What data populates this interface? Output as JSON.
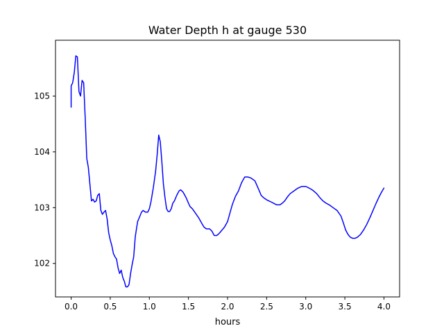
{
  "chart_data": {
    "type": "line",
    "title": "Water Depth h at gauge 530",
    "xlabel": "hours",
    "ylabel": "",
    "xlim": [
      -0.2,
      4.2
    ],
    "ylim": [
      101.4,
      106.0
    ],
    "xticks": [
      0.0,
      0.5,
      1.0,
      1.5,
      2.0,
      2.5,
      3.0,
      3.5,
      4.0
    ],
    "xtick_labels": [
      "0.0",
      "0.5",
      "1.0",
      "1.5",
      "2.0",
      "2.5",
      "3.0",
      "3.5",
      "4.0"
    ],
    "yticks": [
      102,
      103,
      104,
      105
    ],
    "ytick_labels": [
      "102",
      "103",
      "104",
      "105"
    ],
    "grid": false,
    "series": [
      {
        "color": "#0000ff",
        "x": [
          0.0,
          0.0,
          0.02,
          0.04,
          0.06,
          0.08,
          0.1,
          0.12,
          0.14,
          0.16,
          0.18,
          0.2,
          0.22,
          0.24,
          0.26,
          0.28,
          0.3,
          0.32,
          0.34,
          0.36,
          0.38,
          0.4,
          0.42,
          0.44,
          0.46,
          0.48,
          0.5,
          0.52,
          0.54,
          0.56,
          0.58,
          0.6,
          0.62,
          0.64,
          0.66,
          0.68,
          0.7,
          0.72,
          0.74,
          0.76,
          0.78,
          0.8,
          0.82,
          0.85,
          0.88,
          0.9,
          0.92,
          0.95,
          0.98,
          1.0,
          1.02,
          1.05,
          1.08,
          1.1,
          1.12,
          1.14,
          1.16,
          1.18,
          1.2,
          1.22,
          1.24,
          1.26,
          1.28,
          1.3,
          1.32,
          1.35,
          1.38,
          1.4,
          1.43,
          1.47,
          1.5,
          1.52,
          1.55,
          1.58,
          1.6,
          1.63,
          1.67,
          1.7,
          1.73,
          1.77,
          1.8,
          1.83,
          1.86,
          1.88,
          1.9,
          1.93,
          1.96,
          2.0,
          2.03,
          2.06,
          2.1,
          2.14,
          2.18,
          2.22,
          2.26,
          2.3,
          2.35,
          2.4,
          2.43,
          2.46,
          2.5,
          2.53,
          2.56,
          2.6,
          2.63,
          2.67,
          2.7,
          2.73,
          2.77,
          2.8,
          2.85,
          2.9,
          2.95,
          3.0,
          3.03,
          3.07,
          3.1,
          3.14,
          3.18,
          3.22,
          3.26,
          3.3,
          3.35,
          3.4,
          3.45,
          3.48,
          3.51,
          3.54,
          3.57,
          3.6,
          3.63,
          3.66,
          3.7,
          3.74,
          3.78,
          3.82,
          3.86,
          3.9,
          3.94,
          3.97,
          4.0
        ],
        "y": [
          104.8,
          105.18,
          105.24,
          105.42,
          105.72,
          105.7,
          105.08,
          105.0,
          105.28,
          105.24,
          104.6,
          103.88,
          103.72,
          103.42,
          103.12,
          103.15,
          103.1,
          103.12,
          103.22,
          103.25,
          102.95,
          102.88,
          102.92,
          102.95,
          102.8,
          102.55,
          102.42,
          102.32,
          102.18,
          102.12,
          102.08,
          101.92,
          101.82,
          101.88,
          101.75,
          101.68,
          101.58,
          101.58,
          101.62,
          101.82,
          101.98,
          102.12,
          102.48,
          102.75,
          102.85,
          102.92,
          102.95,
          102.92,
          102.92,
          102.98,
          103.1,
          103.35,
          103.65,
          103.95,
          104.3,
          104.18,
          103.82,
          103.42,
          103.18,
          102.98,
          102.93,
          102.93,
          102.98,
          103.08,
          103.12,
          103.22,
          103.3,
          103.32,
          103.28,
          103.18,
          103.08,
          103.02,
          102.98,
          102.92,
          102.88,
          102.82,
          102.72,
          102.65,
          102.62,
          102.62,
          102.58,
          102.5,
          102.5,
          102.52,
          102.55,
          102.6,
          102.65,
          102.75,
          102.9,
          103.05,
          103.2,
          103.3,
          103.45,
          103.55,
          103.55,
          103.53,
          103.48,
          103.32,
          103.22,
          103.18,
          103.14,
          103.12,
          103.1,
          103.07,
          103.05,
          103.05,
          103.08,
          103.12,
          103.2,
          103.25,
          103.3,
          103.35,
          103.38,
          103.38,
          103.36,
          103.33,
          103.3,
          103.25,
          103.18,
          103.12,
          103.08,
          103.05,
          103.0,
          102.95,
          102.85,
          102.73,
          102.6,
          102.52,
          102.47,
          102.45,
          102.45,
          102.47,
          102.52,
          102.6,
          102.7,
          102.82,
          102.95,
          103.08,
          103.2,
          103.28,
          103.35
        ]
      }
    ]
  }
}
